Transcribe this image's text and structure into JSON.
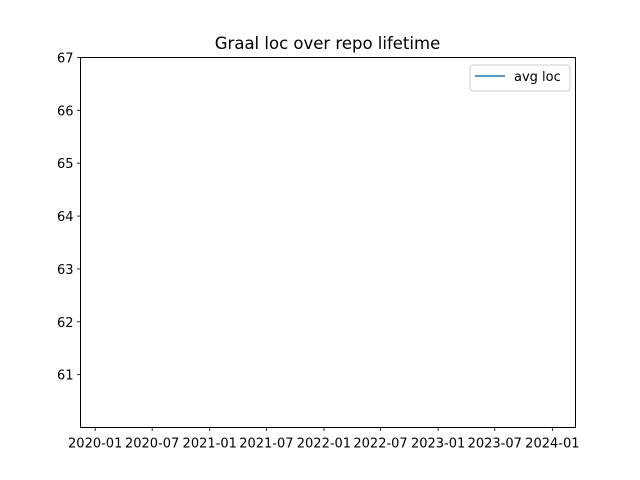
{
  "chart_data": {
    "type": "line",
    "title": "Graal loc over repo lifetime",
    "xlabel": "",
    "ylabel": "",
    "x_axis_type": "date",
    "x_ticks": [
      "2020-01",
      "2020-07",
      "2021-01",
      "2021-07",
      "2022-01",
      "2022-07",
      "2023-01",
      "2023-07",
      "2024-01"
    ],
    "xlim": [
      "2019-11-15",
      "2024-03-15"
    ],
    "y_ticks": [
      61,
      62,
      63,
      64,
      65,
      66,
      67
    ],
    "ylim": [
      60.0,
      67.0
    ],
    "grid": false,
    "legend_position": "top-right",
    "colors": {
      "series_1": "#1f77b4"
    },
    "series": [
      {
        "name": "avg loc",
        "color": "#1f77b4",
        "x": [],
        "y": []
      }
    ]
  }
}
